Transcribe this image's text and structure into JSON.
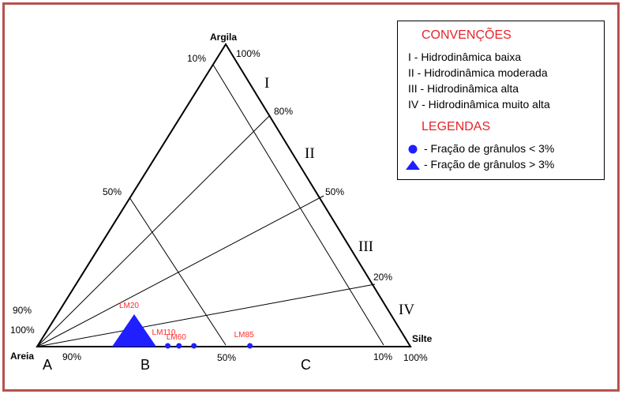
{
  "diagram": {
    "vertices": {
      "top": "Argila",
      "left": "Areia",
      "right": "Silte"
    },
    "percent_labels": {
      "top_10": "10%",
      "top_100": "100%",
      "left_80": "80%",
      "left_50": "50%",
      "right_50": "50%",
      "right_20": "20%",
      "left_90": "90%",
      "left_100": "100%",
      "bottom_90": "90%",
      "bottom_50": "50%",
      "bottom_10": "10%",
      "bottom_100": "100%"
    },
    "zones": {
      "roman": [
        "I",
        "II",
        "III",
        "IV"
      ],
      "letters": [
        "A",
        "B",
        "C"
      ]
    },
    "samples": [
      {
        "label": "LM20",
        "marker": "triangle",
        "sand": 0.74,
        "silt": 0.26,
        "clay": 0.0
      },
      {
        "label": "LM110",
        "marker": "circle",
        "sand": 0.65,
        "silt": 0.35,
        "clay": 0.0
      },
      {
        "label": "LM60",
        "marker": "circle",
        "sand": 0.62,
        "silt": 0.38,
        "clay": 0.0
      },
      {
        "label": "",
        "marker": "circle",
        "sand": 0.58,
        "silt": 0.42,
        "clay": 0.0
      },
      {
        "label": "LM85",
        "marker": "circle",
        "sand": 0.43,
        "silt": 0.57,
        "clay": 0.0
      }
    ],
    "marker_color": "#1f1fff",
    "label_color": "#ff2a2a",
    "frame_color": "#b5524f"
  },
  "legend": {
    "conventions_title": "CONVENÇÕES",
    "conventions": [
      "I - Hidrodinâmica baixa",
      "II - Hidrodinâmica moderada",
      "III - Hidrodinâmica alta",
      "IV - Hidrodinâmica muito alta"
    ],
    "legends_title": "LEGENDAS",
    "items": [
      {
        "symbol": "circle",
        "text": "- Fração de grânulos < 3%"
      },
      {
        "symbol": "triangle",
        "text": "- Fração de grânulos > 3%"
      }
    ],
    "accent_color": "#e8242a"
  }
}
